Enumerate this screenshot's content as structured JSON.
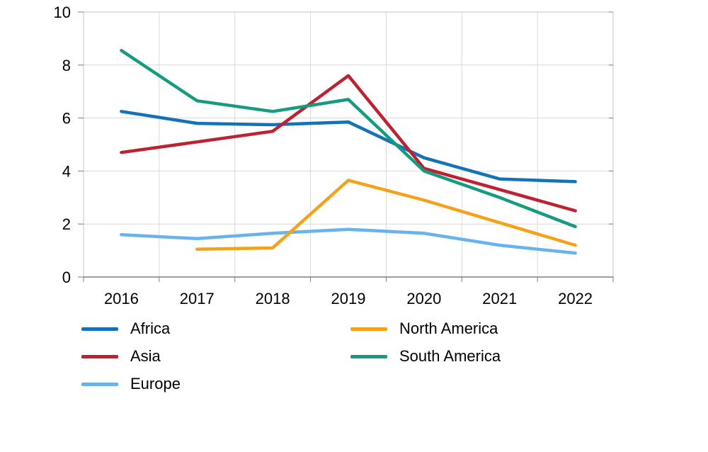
{
  "chart_data": {
    "type": "line",
    "title": "",
    "xlabel": "",
    "ylabel": "",
    "categories": [
      "2016",
      "2017",
      "2018",
      "2019",
      "2020",
      "2021",
      "2022"
    ],
    "series": [
      {
        "name": "Africa",
        "color": "#1372b8",
        "values": [
          6.25,
          5.8,
          5.75,
          5.85,
          4.5,
          3.7,
          3.6
        ]
      },
      {
        "name": "Asia",
        "color": "#bd2132",
        "values": [
          4.7,
          5.1,
          5.5,
          7.6,
          4.1,
          3.3,
          2.5
        ]
      },
      {
        "name": "Europe",
        "color": "#68b3ee",
        "values": [
          1.6,
          1.45,
          1.65,
          1.8,
          1.65,
          1.2,
          0.9
        ]
      },
      {
        "name": "North America",
        "color": "#f5a21a",
        "values": [
          null,
          1.05,
          1.1,
          3.65,
          2.9,
          2.05,
          1.2
        ]
      },
      {
        "name": "South America",
        "color": "#179b80",
        "values": [
          8.55,
          6.65,
          6.25,
          6.7,
          4.0,
          3.0,
          1.9
        ]
      }
    ],
    "ylim": [
      0,
      10
    ],
    "yticks": [
      0,
      2,
      4,
      6,
      8,
      10
    ],
    "grid": true,
    "legend_position": "bottom",
    "legend_columns": [
      [
        "Africa",
        "Asia",
        "Europe"
      ],
      [
        "North America",
        "South America"
      ]
    ]
  },
  "styles": {
    "background": "#ffffff",
    "gridline_color": "#d9d9d9",
    "plot_border_color": "#c3c3c3",
    "axis_line_color": "#7f7f7f",
    "tick_color": "#7f7f7f",
    "text_color": "#000000"
  }
}
